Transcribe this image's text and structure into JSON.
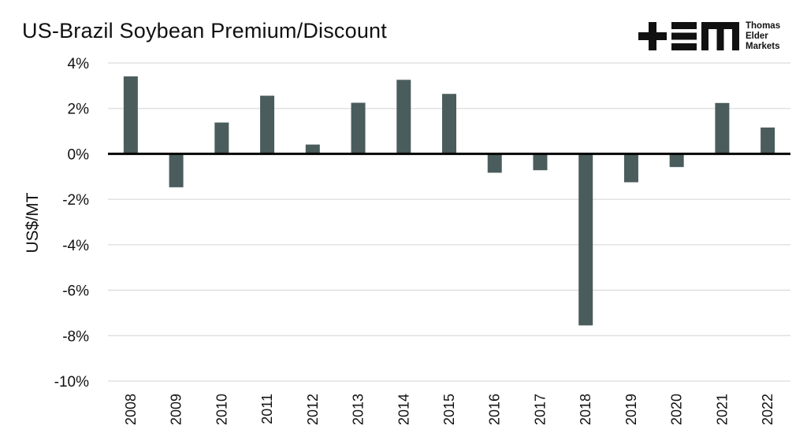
{
  "chart_data": {
    "type": "bar",
    "title": "US-Brazil Soybean Premium/Discount",
    "xlabel": "",
    "ylabel": "US$/MT",
    "categories": [
      "2008",
      "2009",
      "2010",
      "2011",
      "2012",
      "2013",
      "2014",
      "2015",
      "2016",
      "2017",
      "2018",
      "2019",
      "2020",
      "2021",
      "2022"
    ],
    "values": [
      3.41,
      -1.47,
      1.38,
      2.56,
      0.41,
      2.25,
      3.26,
      2.64,
      -0.83,
      -0.72,
      -7.55,
      -1.25,
      -0.58,
      2.24,
      1.16
    ],
    "ylim": [
      -10,
      4
    ],
    "yticks": [
      4,
      2,
      0,
      -2,
      -4,
      -6,
      -8,
      -10
    ],
    "ytick_labels": [
      "4%",
      "2%",
      "0%",
      "-2%",
      "-4%",
      "-6%",
      "-8%",
      "-10%"
    ],
    "grid": true,
    "bar_color": "#4b5c5c"
  },
  "logo": {
    "text_lines": [
      "Thomas",
      "Elder",
      "Markets"
    ]
  }
}
